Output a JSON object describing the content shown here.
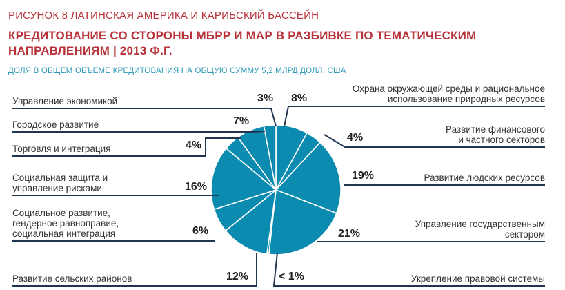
{
  "figure_label": "РИСУНОК 8  ЛАТИНСКАЯ АМЕРИКА И КАРИБСКИЙ БАССЕЙН",
  "title": "КРЕДИТОВАНИЕ СО СТОРОНЫ МБРР И МАР В РАЗБИВКЕ ПО ТЕМАТИЧЕСКИМ НАПРАВЛЕНИЯМ | 2013 Ф.Г.",
  "subtitle": "ДОЛЯ В ОБЩЕМ ОБЪЕМЕ КРЕДИТОВАНИЯ НА ОБЩУЮ СУММУ 5,2 МЛРД ДОЛЛ. США",
  "colors": {
    "title": "#b8323a",
    "subtitle": "#2e9ab8",
    "slice": "#0b8bb0",
    "slice_border": "#ffffff",
    "leader": "#1f3550"
  },
  "chart_data": {
    "type": "pie",
    "title": "КРЕДИТОВАНИЕ СО СТОРОНЫ МБРР И МАР В РАЗБИВКЕ ПО ТЕМАТИЧЕСКИМ НАПРАВЛЕНИЯМ | 2013 Ф.Г.",
    "subtitle": "ДОЛЯ В ОБЩЕМ ОБЪЕМЕ КРЕДИТОВАНИЯ НА ОБЩУЮ СУММУ 5,2 МЛРД ДОЛЛ. США",
    "slices": [
      {
        "label": "Охрана окружающей среды и рациональное использование природных ресурсов",
        "value": 8,
        "value_label": "8%"
      },
      {
        "label": "Развитие финансового и частного секторов",
        "value": 4,
        "value_label": "4%"
      },
      {
        "label": "Развитие людских ресурсов",
        "value": 19,
        "value_label": "19%"
      },
      {
        "label": "Управление государственным сектором",
        "value": 21,
        "value_label": "21%"
      },
      {
        "label": "Укрепление правовой системы",
        "value": 0.5,
        "value_label": "< 1%"
      },
      {
        "label": "Развитие сельских районов",
        "value": 12,
        "value_label": "12%"
      },
      {
        "label": "Социальное развитие, гендерное равноправие, социальная интеграция",
        "value": 6,
        "value_label": "6%"
      },
      {
        "label": "Социальная защита и управление рисками",
        "value": 16,
        "value_label": "16%"
      },
      {
        "label": "Торговля и интеграция",
        "value": 4,
        "value_label": "4%"
      },
      {
        "label": "Городское развитие",
        "value": 7,
        "value_label": "7%"
      },
      {
        "label": "Управление экономикой",
        "value": 3,
        "value_label": "3%"
      }
    ],
    "legend": "none"
  },
  "labels": {
    "environment": [
      "Охрана окружающей среды и рациональное",
      "использование природных ресурсов"
    ],
    "financial": [
      "Развитие финансового",
      "и частного секторов"
    ],
    "human": [
      "Развитие людских ресурсов"
    ],
    "public": [
      "Управление государственным",
      "сектором"
    ],
    "legal": [
      "Укрепление правовой системы"
    ],
    "rural": [
      "Развитие сельских районов"
    ],
    "social_dev": [
      "Социальное развитие,",
      "гендерное равноправие,",
      "социальная интеграция"
    ],
    "social_prot": [
      "Социальная защита и",
      "управление рисками"
    ],
    "trade": [
      "Торговля и интеграция"
    ],
    "urban": [
      "Городское развитие"
    ],
    "economic": [
      "Управление экономикой"
    ]
  }
}
